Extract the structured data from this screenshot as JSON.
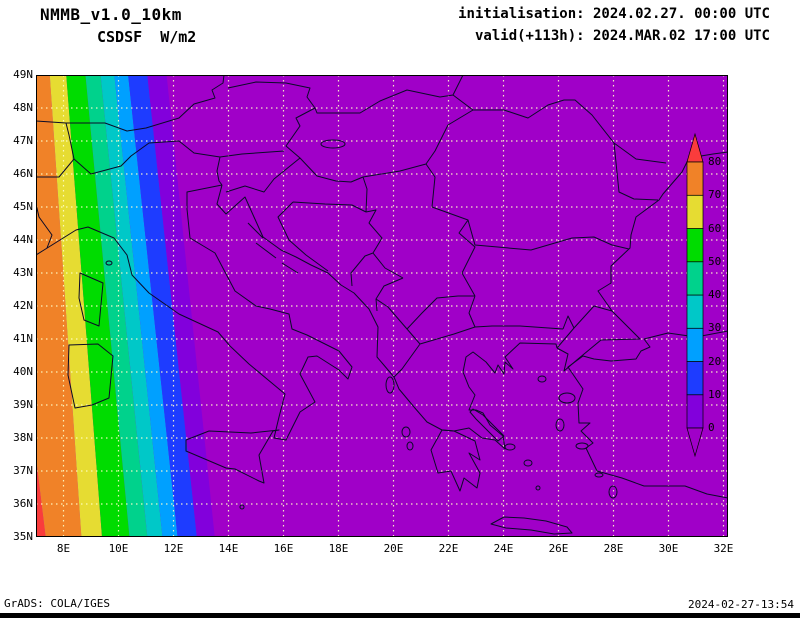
{
  "header": {
    "model": "NMMB_v1.0_10km",
    "variable": "CSDSF  W/m2",
    "init": "initialisation: 2024.02.27. 00:00 UTC",
    "valid": "valid(+113h): 2024.MAR.02 17:00 UTC"
  },
  "footer": {
    "left": "GrADS: COLA/IGES",
    "right": "2024-02-27-13:54"
  },
  "axes": {
    "lat_ticks": [
      49,
      48,
      47,
      46,
      45,
      44,
      43,
      42,
      41,
      40,
      39,
      38,
      37,
      36,
      35
    ],
    "lat_labels": [
      "49N",
      "48N",
      "47N",
      "46N",
      "45N",
      "44N",
      "43N",
      "42N",
      "41N",
      "40N",
      "39N",
      "38N",
      "37N",
      "36N",
      "35N"
    ],
    "lon_ticks": [
      8,
      10,
      12,
      14,
      16,
      18,
      20,
      22,
      24,
      26,
      28,
      30,
      32
    ],
    "lon_labels": [
      "8E",
      "10E",
      "12E",
      "14E",
      "16E",
      "18E",
      "20E",
      "22E",
      "24E",
      "26E",
      "28E",
      "30E",
      "32E"
    ]
  },
  "colorbar": {
    "tick_labels": [
      "0",
      "10",
      "20",
      "30",
      "40",
      "50",
      "60",
      "70",
      "80"
    ],
    "segments_bottom_to_top": [
      "#8200dc",
      "#1e3cff",
      "#00a0ff",
      "#00c8c8",
      "#00d28c",
      "#00dc00",
      "#e6dc32",
      "#f08228"
    ],
    "bottom_arrow": "#a000c8",
    "top_arrow": "#fa3c3c"
  },
  "colors": {
    "page_bg": "#ffffff",
    "night": "#a000c8",
    "grid": "#ffffc8",
    "coast": "#0a0a28",
    "frame": "#000000"
  },
  "chart_data": {
    "type": "heatmap",
    "title": "CSDSF W/m2",
    "model": "NMMB_v1.0_10km",
    "init_time": "2024.02.27 00:00 UTC",
    "valid_time": "2024.MAR.02 17:00 UTC",
    "forecast_hour": 113,
    "units": "W/m2",
    "lon_range_deg_east": [
      7,
      32.2
    ],
    "lat_range_deg_north": [
      35,
      49
    ],
    "contour_levels": [
      0,
      10,
      20,
      30,
      40,
      50,
      60,
      70,
      80
    ],
    "bin_colors": {
      "night": "#a000c8",
      "0-10": "#8200dc",
      "10-20": "#1e3cff",
      "20-30": "#00a0ff",
      "30-40": "#00c8c8",
      "40-50": "#00d28c",
      "50-60": "#00dc00",
      "60-70": "#e6dc32",
      "70-80": "#f08228",
      "above_80": "#fa3c3c"
    },
    "band_colors_west_to_east": [
      "#f08228",
      "#e6dc32",
      "#00dc00",
      "#00d28c",
      "#00c8c8",
      "#00a0ff",
      "#1e3cff",
      "#8200dc"
    ],
    "terminator_contours": [
      {
        "level": 80,
        "lon_at_49N": 5.3,
        "lon_at_35N": 7.35
      },
      {
        "level": 70,
        "lon_at_49N": 7.5,
        "lon_at_35N": 8.65
      },
      {
        "level": 60,
        "lon_at_49N": 8.1,
        "lon_at_35N": 9.4
      },
      {
        "level": 50,
        "lon_at_49N": 8.8,
        "lon_at_35N": 10.4
      },
      {
        "level": 40,
        "lon_at_49N": 9.35,
        "lon_at_35N": 11.05
      },
      {
        "level": 30,
        "lon_at_49N": 9.85,
        "lon_at_35N": 11.6
      },
      {
        "level": 20,
        "lon_at_49N": 10.35,
        "lon_at_35N": 12.15
      },
      {
        "level": 10,
        "lon_at_49N": 11.05,
        "lon_at_35N": 12.85
      },
      {
        "level": 0,
        "lon_at_49N": 11.75,
        "lon_at_35N": 13.5
      }
    ],
    "field_description": "Clear-sky downward shortwave flux over SE Europe: value 0 (night, purple) everywhere east of the sunset terminator; diagonal rainbow bands of increasing flux toward the western edge of the domain"
  }
}
